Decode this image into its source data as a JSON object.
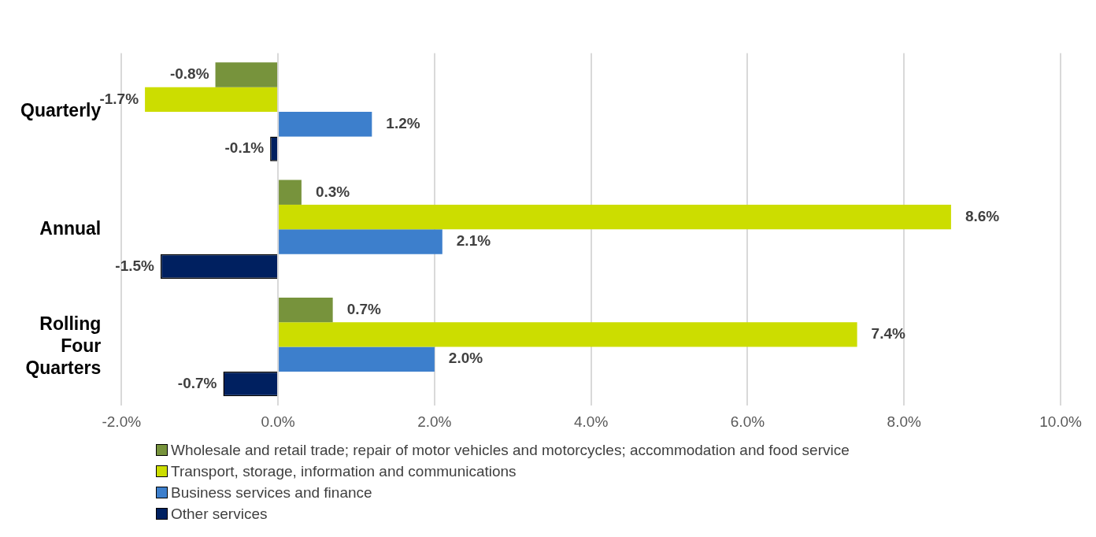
{
  "chart_data": {
    "type": "bar",
    "orientation": "horizontal",
    "categories": [
      "Quarterly",
      "Annual",
      "Rolling Four Quarters"
    ],
    "series": [
      {
        "name": "Wholesale and retail trade; repair of motor vehicles and motorcycles; accommodation and food service",
        "color": "#77933c",
        "values": [
          -0.8,
          0.3,
          0.7
        ],
        "value_labels": [
          "-0.8%",
          "0.3%",
          "0.7%"
        ]
      },
      {
        "name": "Transport, storage, information and communications",
        "color": "#ccdd00",
        "values": [
          -1.7,
          8.6,
          7.4
        ],
        "value_labels": [
          "-1.7%",
          "8.6%",
          "7.4%"
        ]
      },
      {
        "name": "Business services and finance",
        "color": "#3d7fcc",
        "values": [
          1.2,
          2.1,
          2.0
        ],
        "value_labels": [
          "1.2%",
          "2.1%",
          "2.0%"
        ]
      },
      {
        "name": "Other services",
        "color": "#002060",
        "values": [
          -0.1,
          -1.5,
          -0.7
        ],
        "value_labels": [
          "-0.1%",
          "-1.5%",
          "-0.7%"
        ]
      }
    ],
    "xlim": [
      -2,
      10
    ],
    "xticks": [
      {
        "value": -2,
        "label": "-2.0%"
      },
      {
        "value": 0,
        "label": "0.0%"
      },
      {
        "value": 2,
        "label": "2.0%"
      },
      {
        "value": 4,
        "label": "4.0%"
      },
      {
        "value": 6,
        "label": "6.0%"
      },
      {
        "value": 8,
        "label": "8.0%"
      },
      {
        "value": 10,
        "label": "10.0%"
      }
    ],
    "grid": "x",
    "legend": "bottom"
  }
}
